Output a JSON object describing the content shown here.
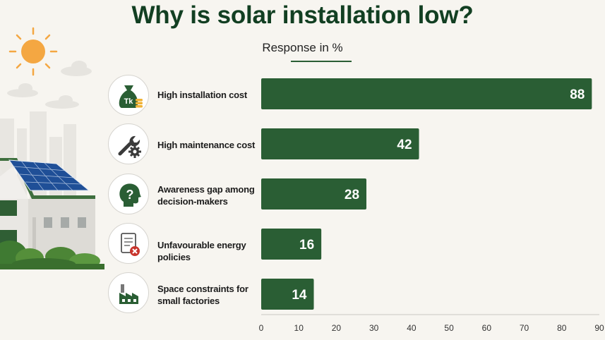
{
  "chart_data": {
    "type": "bar",
    "orientation": "horizontal",
    "title": "Why is solar installation low?",
    "subtitle": "Response in %",
    "categories": [
      "High installation cost",
      "High maintenance cost",
      "Awareness gap among decision-makers",
      "Unfavourable energy policies",
      "Space constraints for small factories"
    ],
    "category_lines": [
      [
        "High installation cost"
      ],
      [
        "High maintenance cost"
      ],
      [
        "Awareness gap among",
        "decision-makers"
      ],
      [
        "Unfavourable energy policies"
      ],
      [
        "Space constraints for",
        "small factories"
      ]
    ],
    "values": [
      88,
      42,
      28,
      16,
      14
    ],
    "xlim": [
      0,
      90
    ],
    "xticks": [
      0,
      10,
      20,
      30,
      40,
      50,
      60,
      70,
      80,
      90
    ],
    "grid": false,
    "bar_color": "#2a5e34"
  },
  "icons": [
    "money-bag-icon",
    "wrench-gear-icon",
    "head-question-icon",
    "document-cross-icon",
    "factory-icon"
  ],
  "colors": {
    "title": "#123f22",
    "bar": "#2a5e34",
    "background": "#f7f5f0",
    "sun": "#f4a742",
    "alert": "#c8352d"
  }
}
